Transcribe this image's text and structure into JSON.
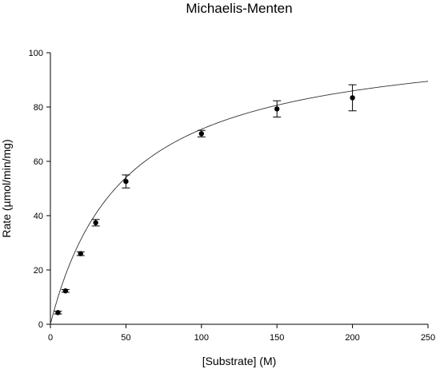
{
  "chart_data": {
    "type": "scatter",
    "title": "Michaelis-Menten",
    "xlabel": "[Substrate] (M)",
    "ylabel": "Rate (µmol/min/mg)",
    "xlim": [
      0,
      250
    ],
    "ylim": [
      0,
      100
    ],
    "x_ticks": [
      0,
      50,
      100,
      150,
      200,
      250
    ],
    "y_ticks": [
      0,
      20,
      40,
      60,
      80,
      100
    ],
    "grid": false,
    "legend": "none",
    "series": [
      {
        "x": [
          5,
          10,
          20,
          30,
          50,
          100,
          150,
          200
        ],
        "y": [
          4.3,
          12.3,
          26.0,
          37.4,
          52.6,
          70.2,
          79.3,
          83.4
        ],
        "error": [
          0.5,
          0.5,
          0.7,
          1.2,
          2.4,
          1.2,
          3.0,
          4.8
        ]
      }
    ],
    "fit_curve": {
      "model": "michaelis-menten",
      "vmax": 107,
      "km": 49
    },
    "colors": {
      "points": "#000000",
      "curve": "#333333",
      "axes": "#000000"
    }
  }
}
